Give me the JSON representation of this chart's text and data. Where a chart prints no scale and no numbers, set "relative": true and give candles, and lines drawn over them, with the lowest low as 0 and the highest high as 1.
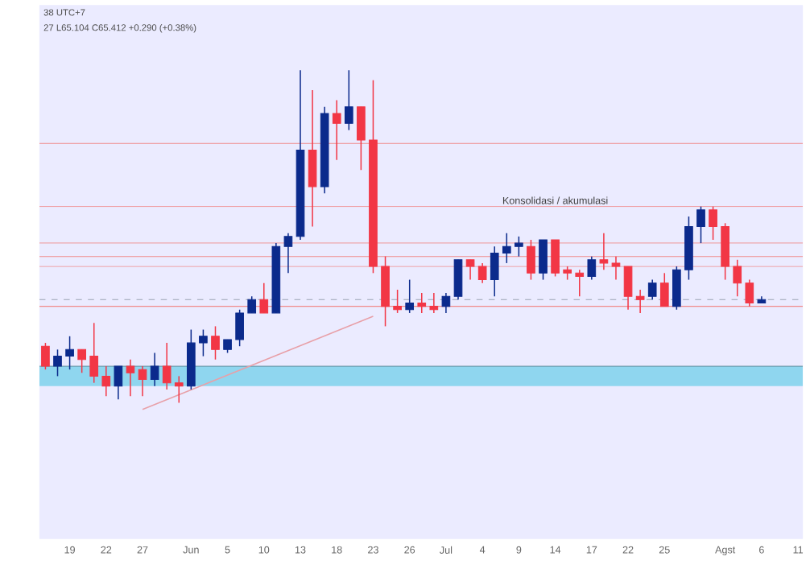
{
  "chart_data": {
    "type": "candlestick",
    "relative": true,
    "categories": [
      null,
      null,
      "19",
      null,
      null,
      "22",
      null,
      null,
      "27",
      null,
      null,
      null,
      "Jun",
      null,
      null,
      "5",
      null,
      null,
      "10",
      null,
      null,
      "13",
      null,
      null,
      "18",
      null,
      null,
      "23",
      null,
      null,
      "26",
      null,
      null,
      "Jul",
      null,
      null,
      "4",
      null,
      null,
      "9",
      null,
      null,
      "14",
      null,
      null,
      "17",
      null,
      null,
      "22",
      null,
      null,
      "25",
      null,
      null,
      null,
      null,
      "Agst",
      null,
      null,
      "6",
      null,
      null,
      "11"
    ],
    "ohlc": [
      [
        0.17,
        0.18,
        0.1,
        0.11
      ],
      [
        0.11,
        0.16,
        0.08,
        0.14
      ],
      [
        0.14,
        0.2,
        0.1,
        0.16
      ],
      [
        0.16,
        0.16,
        0.09,
        0.13
      ],
      [
        0.14,
        0.24,
        0.06,
        0.08
      ],
      [
        0.08,
        0.11,
        0.02,
        0.05
      ],
      [
        0.05,
        0.11,
        0.01,
        0.11
      ],
      [
        0.11,
        0.13,
        0.02,
        0.09
      ],
      [
        0.1,
        0.11,
        0.02,
        0.07
      ],
      [
        0.07,
        0.15,
        0.05,
        0.11
      ],
      [
        0.11,
        0.18,
        0.04,
        0.06
      ],
      [
        0.06,
        0.08,
        0,
        0.05
      ],
      [
        0.05,
        0.22,
        0.04,
        0.18
      ],
      [
        0.18,
        0.22,
        0.14,
        0.2
      ],
      [
        0.2,
        0.23,
        0.13,
        0.16
      ],
      [
        0.16,
        0.19,
        0.15,
        0.19
      ],
      [
        0.19,
        0.28,
        0.17,
        0.27
      ],
      [
        0.27,
        0.32,
        0.27,
        0.31
      ],
      [
        0.31,
        0.36,
        0.27,
        0.27
      ],
      [
        0.27,
        0.48,
        0.27,
        0.47
      ],
      [
        0.47,
        0.51,
        0.39,
        0.5
      ],
      [
        0.5,
        1.0,
        0.49,
        0.76
      ],
      [
        0.76,
        0.94,
        0.53,
        0.65
      ],
      [
        0.65,
        0.89,
        0.63,
        0.87
      ],
      [
        0.87,
        0.91,
        0.73,
        0.84
      ],
      [
        0.84,
        1.0,
        0.82,
        0.89
      ],
      [
        0.89,
        0.89,
        0.7,
        0.79
      ],
      [
        0.79,
        0.97,
        0.39,
        0.41
      ],
      [
        0.41,
        0.44,
        0.23,
        0.29
      ],
      [
        0.29,
        0.34,
        0.27,
        0.28
      ],
      [
        0.28,
        0.37,
        0.27,
        0.3
      ],
      [
        0.3,
        0.33,
        0.27,
        0.29
      ],
      [
        0.29,
        0.33,
        0.27,
        0.28
      ],
      [
        0.29,
        0.33,
        0.27,
        0.32
      ],
      [
        0.32,
        0.43,
        0.31,
        0.43
      ],
      [
        0.43,
        0.43,
        0.37,
        0.41
      ],
      [
        0.41,
        0.42,
        0.36,
        0.37
      ],
      [
        0.37,
        0.47,
        0.32,
        0.45
      ],
      [
        0.45,
        0.51,
        0.42,
        0.47
      ],
      [
        0.47,
        0.5,
        0.44,
        0.48
      ],
      [
        0.47,
        0.49,
        0.37,
        0.39
      ],
      [
        0.39,
        0.49,
        0.37,
        0.49
      ],
      [
        0.49,
        0.49,
        0.38,
        0.39
      ],
      [
        0.4,
        0.41,
        0.37,
        0.39
      ],
      [
        0.39,
        0.4,
        0.32,
        0.38
      ],
      [
        0.38,
        0.44,
        0.37,
        0.43
      ],
      [
        0.43,
        0.51,
        0.4,
        0.42
      ],
      [
        0.42,
        0.44,
        0.37,
        0.41
      ],
      [
        0.41,
        0.41,
        0.28,
        0.32
      ],
      [
        0.32,
        0.34,
        0.27,
        0.31
      ],
      [
        0.32,
        0.37,
        0.31,
        0.36
      ],
      [
        0.36,
        0.39,
        0.29,
        0.29
      ],
      [
        0.29,
        0.41,
        0.28,
        0.4
      ],
      [
        0.4,
        0.56,
        0.37,
        0.53
      ],
      [
        0.53,
        0.59,
        0.48,
        0.58
      ],
      [
        0.58,
        0.59,
        0.49,
        0.53
      ],
      [
        0.53,
        0.54,
        0.37,
        0.41
      ],
      [
        0.41,
        0.43,
        0.32,
        0.36
      ],
      [
        0.36,
        0.37,
        0.29,
        0.3
      ],
      [
        0.3,
        0.32,
        0.3,
        0.31
      ],
      null,
      null,
      null
    ],
    "colors": [
      "#f23645",
      "#0b2a8c",
      "#0b2a8c",
      "#f23645",
      "#f23645",
      "#f23645",
      "#0b2a8c",
      "#f23645",
      "#f23645",
      "#0b2a8c",
      "#f23645",
      "#f23645",
      "#0b2a8c",
      "#0b2a8c",
      "#f23645",
      "#0b2a8c",
      "#0b2a8c",
      "#0b2a8c",
      "#f23645",
      "#0b2a8c",
      "#0b2a8c",
      "#0b2a8c",
      "#f23645",
      "#0b2a8c",
      "#f23645",
      "#0b2a8c",
      "#f23645",
      "#f23645",
      "#f23645",
      "#f23645",
      "#0b2a8c",
      "#f23645",
      "#f23645",
      "#0b2a8c",
      "#0b2a8c",
      "#f23645",
      "#f23645",
      "#0b2a8c",
      "#0b2a8c",
      "#0b2a8c",
      "#f23645",
      "#0b2a8c",
      "#f23645",
      "#f23645",
      "#f23645",
      "#0b2a8c",
      "#f23645",
      "#f23645",
      "#f23645",
      "#f23645",
      "#0b2a8c",
      "#f23645",
      "#0b2a8c",
      "#0b2a8c",
      "#0b2a8c",
      "#f23645",
      "#f23645",
      "#f23645",
      "#f23645",
      "#0b2a8c",
      null,
      null,
      null
    ],
    "series": [
      {
        "type": "line",
        "x": [
          "27",
          "23"
        ],
        "values": [
          -0.02,
          0.26
        ],
        "color": "#e8a0a8"
      }
    ],
    "ref_lines": [
      {
        "axis": "y",
        "value": 0.78,
        "color": "#f08a8a"
      },
      {
        "axis": "y",
        "value": 0.59,
        "color": "#f08a8a"
      },
      {
        "axis": "y",
        "value": 0.48,
        "color": "#f08a8a"
      },
      {
        "axis": "y",
        "value": 0.44,
        "color": "#f08a8a"
      },
      {
        "axis": "y",
        "value": 0.41,
        "color": "#f08a8a"
      },
      {
        "axis": "y",
        "value": 0.31,
        "color": "#9aa4b4",
        "line_style": "dashed"
      },
      {
        "axis": "y",
        "value": 0.29,
        "color": "#f08a8a"
      },
      {
        "axis": "y",
        "value": 0.11,
        "color": "#56808f"
      }
    ],
    "bands": [
      {
        "axis": "y",
        "from": 0.05,
        "to": 0.11,
        "color": "#8fd6ef"
      }
    ],
    "annotations": [
      "38 UTC+7",
      "27 L65.104 C65.412 +0.290 (+0.38%)",
      {
        "text": "Konsolidasi / akumulasi",
        "x": "14",
        "y": 0.59
      }
    ]
  }
}
